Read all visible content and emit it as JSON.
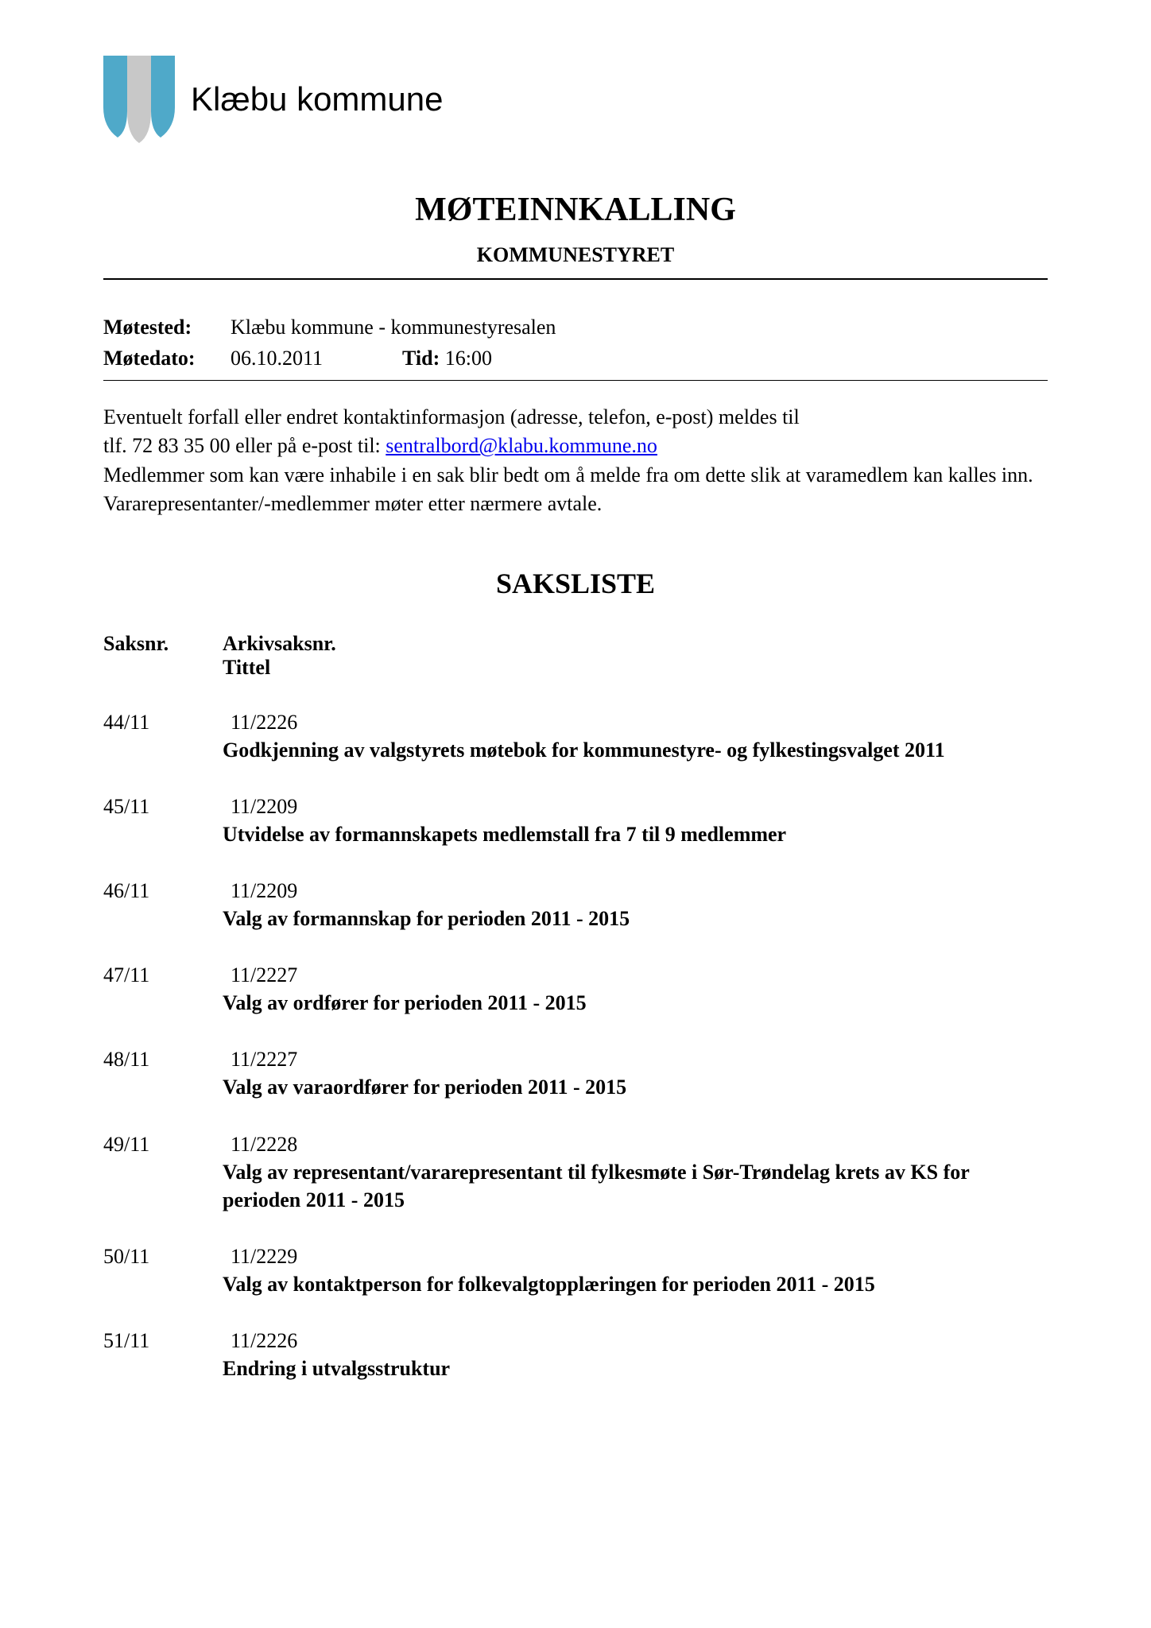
{
  "header": {
    "org_name": "Klæbu kommune",
    "logo": {
      "left_color": "#4fa9c9",
      "right_color": "#4fa9c9",
      "center_color": "#c8c8c8"
    }
  },
  "document": {
    "main_title": "MØTEINNKALLING",
    "subtitle": "KOMMUNESTYRET"
  },
  "meeting": {
    "motested_label": "Møtested:",
    "motested_value": "Klæbu kommune - kommunestyresalen",
    "motedato_label": "Møtedato:",
    "motedato_value": "06.10.2011",
    "tid_label": "Tid:",
    "tid_value": "16:00"
  },
  "body": {
    "line1": "Eventuelt forfall eller endret kontaktinformasjon (adresse, telefon, e-post) meldes til",
    "line2_pre": "tlf. 72 83 35 00 eller på e-post til: ",
    "email": "sentralbord@klabu.kommune.no",
    "line3": "Medlemmer som kan være inhabile i en sak blir bedt om å melde fra om dette slik at varamedlem kan kalles inn. Vararepresentanter/-medlemmer møter etter nærmere avtale."
  },
  "saksliste": {
    "title": "SAKSLISTE",
    "header_saksnr": "Saksnr.",
    "header_arkiv": "Arkivsaksnr.",
    "header_tittel": "Tittel",
    "items": [
      {
        "saksnr": "44/11",
        "arkiv": "11/2226",
        "tittel": "Godkjenning av valgstyrets møtebok for kommunestyre- og fylkestingsvalget 2011"
      },
      {
        "saksnr": "45/11",
        "arkiv": "11/2209",
        "tittel": "Utvidelse av formannskapets medlemstall fra 7 til 9 medlemmer"
      },
      {
        "saksnr": "46/11",
        "arkiv": "11/2209",
        "tittel": "Valg av formannskap for perioden 2011 - 2015"
      },
      {
        "saksnr": "47/11",
        "arkiv": "11/2227",
        "tittel": "Valg av ordfører for perioden 2011 - 2015"
      },
      {
        "saksnr": "48/11",
        "arkiv": "11/2227",
        "tittel": "Valg av varaordfører for perioden 2011 - 2015"
      },
      {
        "saksnr": "49/11",
        "arkiv": "11/2228",
        "tittel": "Valg av representant/vararepresentant til fylkesmøte i Sør-Trøndelag krets av KS for perioden 2011 - 2015"
      },
      {
        "saksnr": "50/11",
        "arkiv": "11/2229",
        "tittel": "Valg av kontaktperson for folkevalgtopplæringen for perioden 2011 - 2015"
      },
      {
        "saksnr": "51/11",
        "arkiv": "11/2226",
        "tittel": "Endring i utvalgsstruktur"
      }
    ]
  }
}
